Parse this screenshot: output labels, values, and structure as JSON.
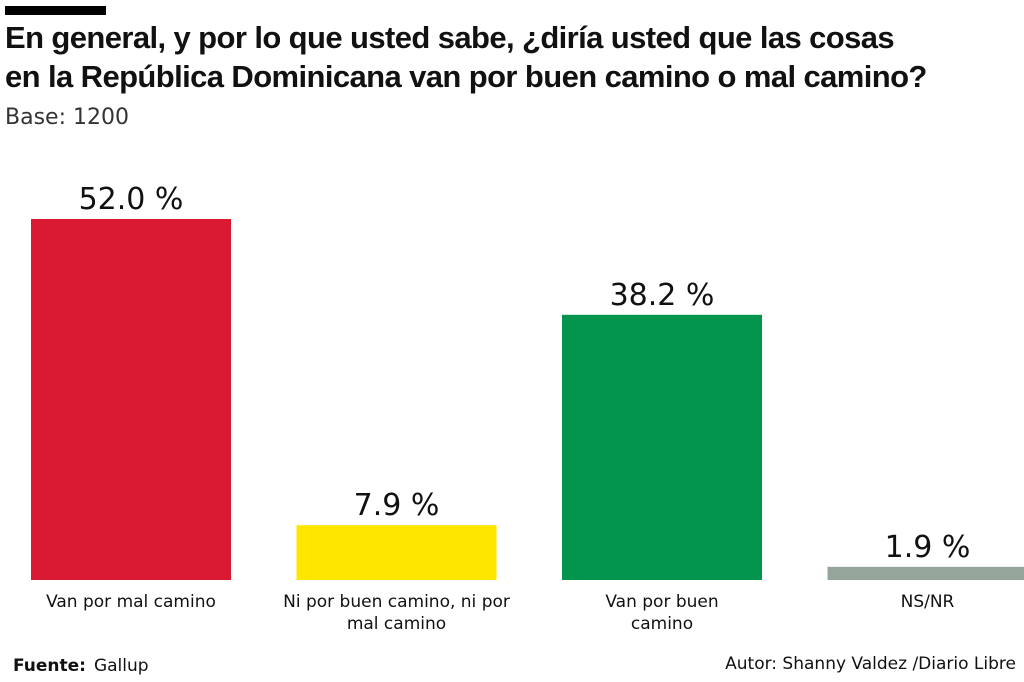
{
  "header": {
    "title_line_1": "En general, y por lo que usted sabe, ¿diría usted que las cosas",
    "title_line_2": "en la República Dominicana van por buen camino o mal camino?",
    "base": "Base: 1200"
  },
  "chart_data": {
    "type": "bar",
    "title": "En general, y por lo que usted sabe, ¿diría usted que las cosas en la República Dominicana van por buen camino o mal camino?",
    "subtitle": "Base: 1200",
    "categories": [
      "Van por mal camino",
      "Ni por buen camino, ni por mal camino",
      "Van por buen camino",
      "NS/NR"
    ],
    "category_lines": [
      [
        "Van por mal camino"
      ],
      [
        "Ni por buen camino, ni por",
        "mal camino"
      ],
      [
        "Van por buen",
        "camino"
      ],
      [
        "NS/NR"
      ]
    ],
    "values": [
      52.0,
      7.9,
      38.2,
      1.9
    ],
    "value_labels": [
      "52.0 %",
      "7.9 %",
      "38.2 %",
      "1.9 %"
    ],
    "colors": [
      "#d91a32",
      "#ffe600",
      "#03944d",
      "#95a59c"
    ],
    "unit": "%",
    "xlabel": "",
    "ylabel": "",
    "ylim": [
      0,
      52.0
    ],
    "grid": false,
    "legend": "none"
  },
  "footer": {
    "source_label": "Fuente:",
    "source_value": "Gallup",
    "author": "Autor: Shanny Valdez /Diario Libre"
  }
}
